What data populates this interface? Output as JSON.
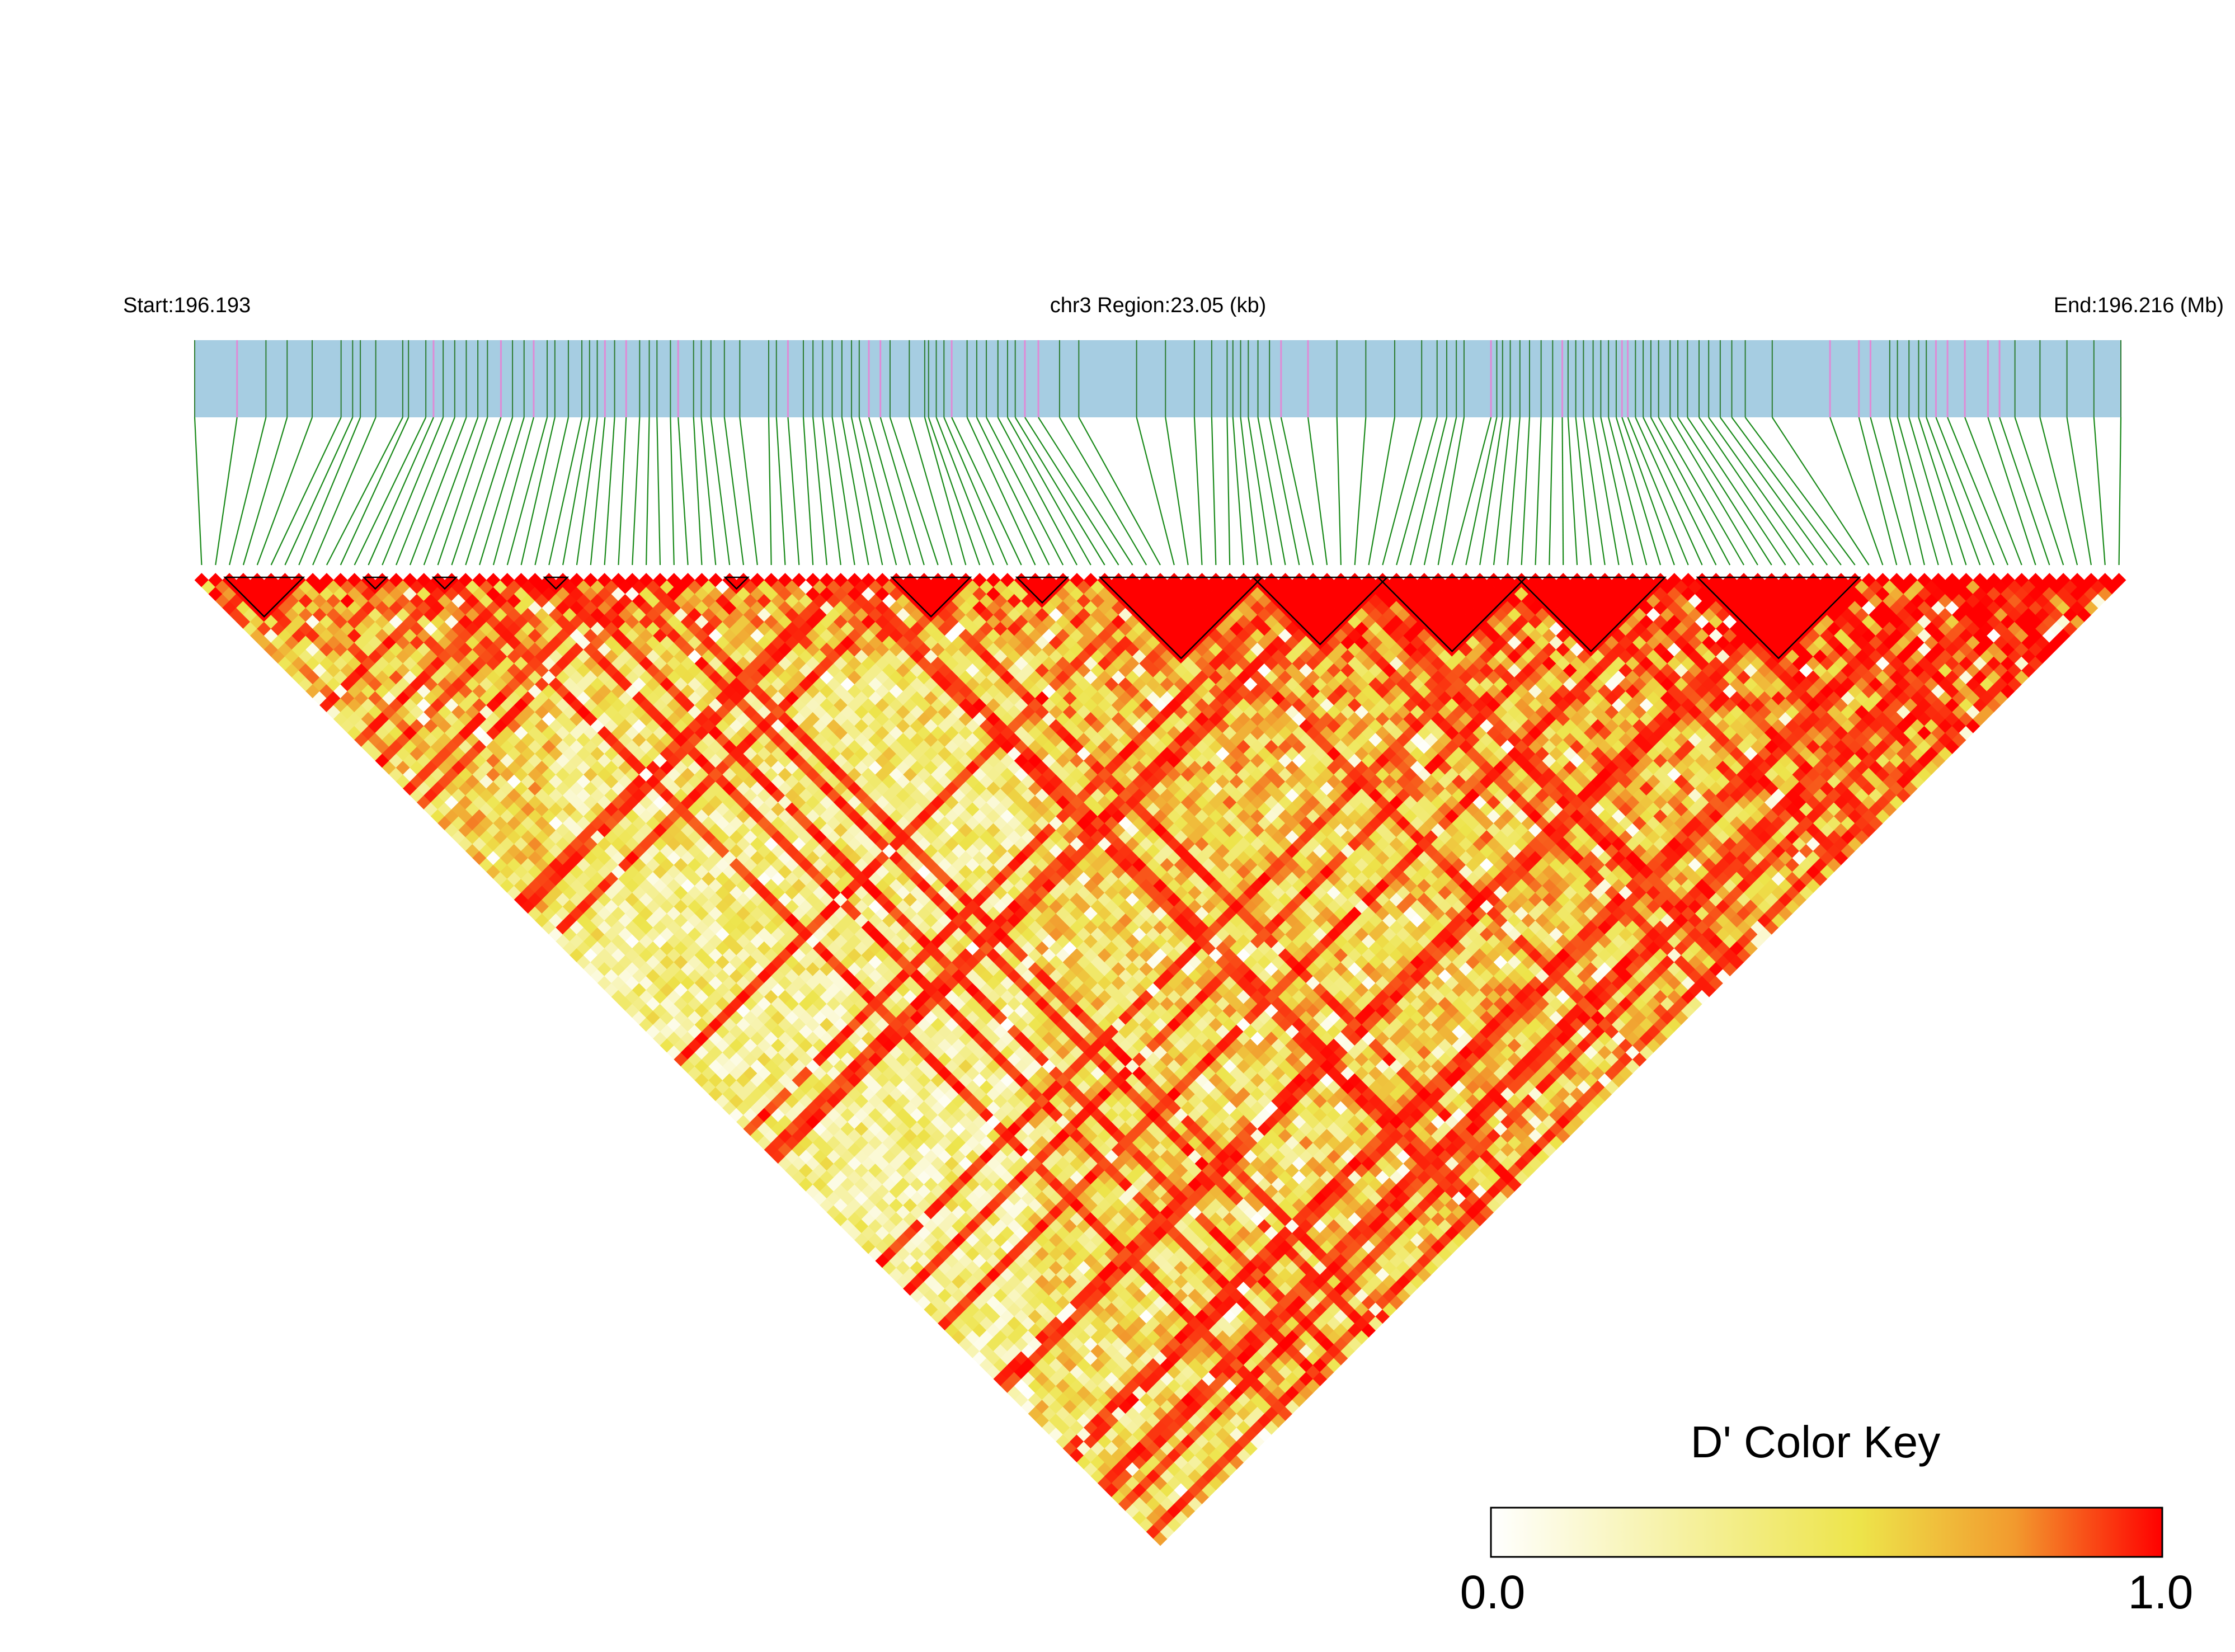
{
  "chart_data": {
    "type": "heatmap",
    "subtype": "LD triangle heatmap",
    "start_label": "Start:196.193",
    "region_label": "chr3 Region:23.05 (kb)",
    "end_label": "End:196.216 (Mb)",
    "region_start_mb": 196.193,
    "region_end_mb": 196.216,
    "region_length_kb": 23.05,
    "snp_count": 139,
    "colors": {
      "gene_bar": "#a6cde2",
      "snp_tick": "#2e7d32",
      "snp_tick_highlight": "#e08ad6",
      "connector_line": "#1a8a1a",
      "block_outline": "#000000"
    },
    "snp_positions_frac": [
      0.0,
      0.022,
      0.037,
      0.048,
      0.061,
      0.076,
      0.082,
      0.086,
      0.094,
      0.108,
      0.111,
      0.12,
      0.124,
      0.129,
      0.135,
      0.141,
      0.147,
      0.152,
      0.159,
      0.165,
      0.171,
      0.176,
      0.183,
      0.187,
      0.194,
      0.201,
      0.205,
      0.209,
      0.213,
      0.218,
      0.224,
      0.231,
      0.236,
      0.24,
      0.247,
      0.251,
      0.259,
      0.263,
      0.268,
      0.275,
      0.283,
      0.298,
      0.302,
      0.308,
      0.316,
      0.321,
      0.326,
      0.331,
      0.336,
      0.341,
      0.345,
      0.35,
      0.356,
      0.361,
      0.371,
      0.379,
      0.381,
      0.385,
      0.389,
      0.393,
      0.401,
      0.406,
      0.411,
      0.417,
      0.422,
      0.426,
      0.431,
      0.438,
      0.449,
      0.459,
      0.489,
      0.504,
      0.519,
      0.528,
      0.536,
      0.539,
      0.543,
      0.547,
      0.552,
      0.558,
      0.564,
      0.578,
      0.593,
      0.608,
      0.623,
      0.637,
      0.645,
      0.65,
      0.655,
      0.659,
      0.673,
      0.676,
      0.679,
      0.683,
      0.688,
      0.693,
      0.699,
      0.705,
      0.71,
      0.713,
      0.717,
      0.721,
      0.726,
      0.73,
      0.734,
      0.738,
      0.741,
      0.744,
      0.748,
      0.752,
      0.756,
      0.76,
      0.766,
      0.77,
      0.775,
      0.781,
      0.786,
      0.792,
      0.798,
      0.805,
      0.819,
      0.849,
      0.864,
      0.87,
      0.88,
      0.884,
      0.89,
      0.895,
      0.899,
      0.904,
      0.91,
      0.919,
      0.931,
      0.937,
      0.945,
      0.958,
      0.972,
      0.986,
      1.0
    ],
    "highlight_tick_indices": [
      1,
      12,
      18,
      21,
      28,
      30,
      35,
      43,
      51,
      52,
      59,
      66,
      67,
      80,
      81,
      90,
      98,
      106,
      107,
      121,
      122,
      123,
      129,
      130,
      131,
      132,
      133
    ],
    "blocks": [
      {
        "start": 2,
        "end": 7
      },
      {
        "start": 12,
        "end": 13
      },
      {
        "start": 17,
        "end": 18
      },
      {
        "start": 25,
        "end": 26
      },
      {
        "start": 38,
        "end": 39
      },
      {
        "start": 50,
        "end": 55
      },
      {
        "start": 59,
        "end": 62
      },
      {
        "start": 65,
        "end": 76
      },
      {
        "start": 76,
        "end": 85
      },
      {
        "start": 85,
        "end": 95
      },
      {
        "start": 95,
        "end": 105
      },
      {
        "start": 108,
        "end": 119
      }
    ],
    "d_prime_seed": 20240617,
    "color_key": {
      "title": "D' Color Key",
      "min_label": "0.0",
      "max_label": "1.0",
      "min": 0.0,
      "max": 1.0,
      "stops": [
        "#ffffff",
        "#ede44a",
        "#f29a2e",
        "#ff0000"
      ]
    }
  }
}
